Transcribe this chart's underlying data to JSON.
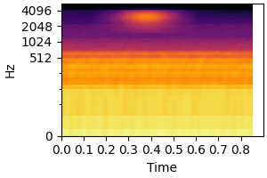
{
  "xlabel": "Time",
  "ylabel": "Hz",
  "x_min": 0.0,
  "x_max": 0.9,
  "y_min": 0,
  "y_max": 5513,
  "yticks": [
    0,
    512,
    1024,
    2048,
    4096
  ],
  "ytick_labels": [
    "0",
    "512",
    "1024",
    "2048",
    "4096"
  ],
  "xticks": [
    0.0,
    0.1,
    0.2,
    0.3,
    0.4,
    0.5,
    0.6,
    0.7,
    0.8
  ],
  "colormap": "inferno",
  "figsize": [
    3.0,
    2.0
  ],
  "dpi": 100,
  "n_time": 100,
  "n_freq": 200,
  "seed": 42
}
